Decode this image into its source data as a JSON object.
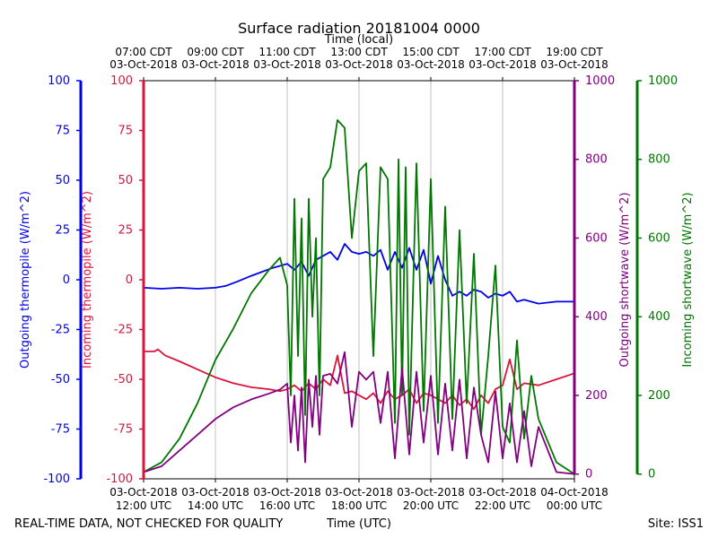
{
  "chart_data": {
    "type": "line",
    "title": "Surface radiation 20181004 0000",
    "top_axis_label": "Time (local)",
    "xlabel": "Time (UTC)",
    "footer_left": "REAL-TIME DATA, NOT CHECKED FOR QUALITY",
    "footer_right": "Site: ISS1",
    "x_range_utc_hours": [
      12,
      24
    ],
    "grid": true,
    "top_ticks": [
      {
        "line1": "07:00 CDT",
        "line2": "03-Oct-2018",
        "hour": 12
      },
      {
        "line1": "09:00 CDT",
        "line2": "03-Oct-2018",
        "hour": 14
      },
      {
        "line1": "11:00 CDT",
        "line2": "03-Oct-2018",
        "hour": 16
      },
      {
        "line1": "13:00 CDT",
        "line2": "03-Oct-2018",
        "hour": 18
      },
      {
        "line1": "15:00 CDT",
        "line2": "03-Oct-2018",
        "hour": 20
      },
      {
        "line1": "17:00 CDT",
        "line2": "03-Oct-2018",
        "hour": 22
      },
      {
        "line1": "19:00 CDT",
        "line2": "03-Oct-2018",
        "hour": 24
      }
    ],
    "bottom_ticks": [
      {
        "line1": "03-Oct-2018",
        "line2": "12:00 UTC",
        "hour": 12
      },
      {
        "line1": "03-Oct-2018",
        "line2": "14:00 UTC",
        "hour": 14
      },
      {
        "line1": "03-Oct-2018",
        "line2": "16:00 UTC",
        "hour": 16
      },
      {
        "line1": "03-Oct-2018",
        "line2": "18:00 UTC",
        "hour": 18
      },
      {
        "line1": "03-Oct-2018",
        "line2": "20:00 UTC",
        "hour": 20
      },
      {
        "line1": "03-Oct-2018",
        "line2": "22:00 UTC",
        "hour": 22
      },
      {
        "line1": "04-Oct-2018",
        "line2": "00:00 UTC",
        "hour": 24
      }
    ],
    "axes": {
      "outgoing_thermopile": {
        "label": "Outgoing thermopile (W/m^2)",
        "color": "#0000ee",
        "ylim": [
          -100,
          100
        ],
        "ticks": [
          "-100",
          "-75",
          "-50",
          "-25",
          "0",
          "25",
          "50",
          "75",
          "100"
        ]
      },
      "incoming_thermopile": {
        "label": "Incoming thermopile (W/m^2)",
        "color": "#dc143c",
        "ylim": [
          -100,
          100
        ],
        "ticks": [
          "-100",
          "-75",
          "-50",
          "-25",
          "0",
          "25",
          "50",
          "75",
          "100"
        ]
      },
      "outgoing_shortwave": {
        "label": "Outgoing shortwave (W/m^2)",
        "color": "#800080",
        "ylim": [
          -12,
          1000
        ],
        "ticks": [
          "0",
          "200",
          "400",
          "600",
          "800",
          "1000"
        ]
      },
      "incoming_shortwave": {
        "label": "Incoming shortwave (W/m^2)",
        "color": "#007700",
        "ylim": [
          -12,
          1000
        ],
        "ticks": [
          "0",
          "200",
          "400",
          "600",
          "800",
          "1000"
        ]
      }
    },
    "series": [
      {
        "name": "Outgoing thermopile",
        "axis": "outgoing_thermopile",
        "color": "#0000ee",
        "x": [
          12.0,
          12.5,
          13.0,
          13.5,
          14.0,
          14.3,
          14.6,
          15.0,
          15.3,
          15.6,
          16.0,
          16.2,
          16.4,
          16.6,
          16.8,
          17.0,
          17.2,
          17.4,
          17.6,
          17.8,
          18.0,
          18.2,
          18.4,
          18.6,
          18.8,
          19.0,
          19.2,
          19.4,
          19.6,
          19.8,
          20.0,
          20.2,
          20.4,
          20.6,
          20.8,
          21.0,
          21.2,
          21.4,
          21.6,
          21.8,
          22.0,
          22.2,
          22.4,
          22.6,
          23.0,
          23.5,
          24.0
        ],
        "values": [
          -4,
          -4.5,
          -4,
          -4.5,
          -4,
          -3,
          -1,
          2,
          4,
          6,
          8,
          5,
          9,
          2,
          10,
          12,
          14,
          10,
          18,
          14,
          13,
          14,
          12,
          15,
          5,
          14,
          6,
          16,
          5,
          15,
          -2,
          12,
          0,
          -8,
          -6,
          -8,
          -5,
          -6,
          -9,
          -7,
          -8,
          -6,
          -11,
          -10,
          -12,
          -11,
          -11
        ]
      },
      {
        "name": "Incoming thermopile",
        "axis": "incoming_thermopile",
        "color": "#dc143c",
        "x": [
          12.0,
          12.3,
          12.4,
          12.6,
          13.0,
          13.5,
          14.0,
          14.5,
          15.0,
          15.5,
          15.8,
          16.0,
          16.2,
          16.4,
          16.6,
          16.8,
          17.0,
          17.2,
          17.4,
          17.6,
          17.8,
          18.0,
          18.2,
          18.4,
          18.6,
          18.8,
          19.0,
          19.2,
          19.4,
          19.6,
          19.8,
          20.0,
          20.2,
          20.4,
          20.6,
          20.8,
          21.0,
          21.2,
          21.4,
          21.6,
          21.8,
          22.0,
          22.2,
          22.4,
          22.6,
          23.0,
          23.5,
          24.0
        ],
        "values": [
          -36,
          -36,
          -35,
          -38,
          -41,
          -45,
          -49,
          -52,
          -54,
          -55,
          -56,
          -55,
          -53,
          -56,
          -52,
          -55,
          -50,
          -53,
          -38,
          -57,
          -56,
          -58,
          -60,
          -57,
          -62,
          -56,
          -60,
          -58,
          -55,
          -62,
          -57,
          -58,
          -60,
          -62,
          -58,
          -63,
          -60,
          -65,
          -58,
          -62,
          -55,
          -53,
          -40,
          -55,
          -52,
          -53,
          -50,
          -47
        ]
      },
      {
        "name": "Outgoing shortwave",
        "axis": "outgoing_shortwave",
        "color": "#800080",
        "x": [
          12.0,
          12.5,
          13.0,
          13.5,
          14.0,
          14.5,
          15.0,
          15.5,
          15.8,
          16.0,
          16.1,
          16.2,
          16.3,
          16.4,
          16.5,
          16.6,
          16.7,
          16.8,
          16.9,
          17.0,
          17.2,
          17.4,
          17.6,
          17.8,
          18.0,
          18.2,
          18.4,
          18.6,
          18.8,
          19.0,
          19.2,
          19.4,
          19.6,
          19.8,
          20.0,
          20.2,
          20.4,
          20.6,
          20.8,
          21.0,
          21.2,
          21.4,
          21.6,
          21.8,
          22.0,
          22.2,
          22.4,
          22.6,
          22.8,
          23.0,
          23.5,
          24.0
        ],
        "values": [
          5,
          20,
          60,
          100,
          140,
          170,
          190,
          205,
          215,
          230,
          80,
          200,
          60,
          220,
          30,
          240,
          120,
          250,
          100,
          250,
          255,
          230,
          310,
          120,
          260,
          240,
          260,
          130,
          260,
          40,
          270,
          50,
          260,
          80,
          250,
          50,
          230,
          60,
          240,
          40,
          220,
          100,
          30,
          210,
          40,
          180,
          30,
          160,
          20,
          120,
          5,
          0
        ]
      },
      {
        "name": "Incoming shortwave",
        "axis": "incoming_shortwave",
        "color": "#007700",
        "x": [
          12.0,
          12.5,
          13.0,
          13.5,
          14.0,
          14.5,
          15.0,
          15.5,
          15.8,
          16.0,
          16.1,
          16.2,
          16.3,
          16.4,
          16.5,
          16.6,
          16.7,
          16.8,
          16.9,
          17.0,
          17.2,
          17.4,
          17.6,
          17.8,
          18.0,
          18.2,
          18.4,
          18.6,
          18.8,
          19.0,
          19.1,
          19.2,
          19.3,
          19.4,
          19.6,
          19.8,
          20.0,
          20.2,
          20.4,
          20.6,
          20.8,
          21.0,
          21.2,
          21.4,
          21.6,
          21.8,
          22.0,
          22.2,
          22.4,
          22.6,
          22.8,
          23.0,
          23.5,
          24.0
        ],
        "values": [
          5,
          30,
          90,
          180,
          290,
          370,
          460,
          520,
          550,
          480,
          200,
          700,
          300,
          650,
          150,
          700,
          400,
          600,
          200,
          750,
          780,
          900,
          880,
          600,
          770,
          790,
          300,
          780,
          750,
          130,
          800,
          200,
          780,
          100,
          790,
          160,
          750,
          130,
          680,
          140,
          620,
          180,
          560,
          100,
          300,
          530,
          120,
          80,
          340,
          90,
          250,
          140,
          30,
          0
        ]
      }
    ]
  }
}
